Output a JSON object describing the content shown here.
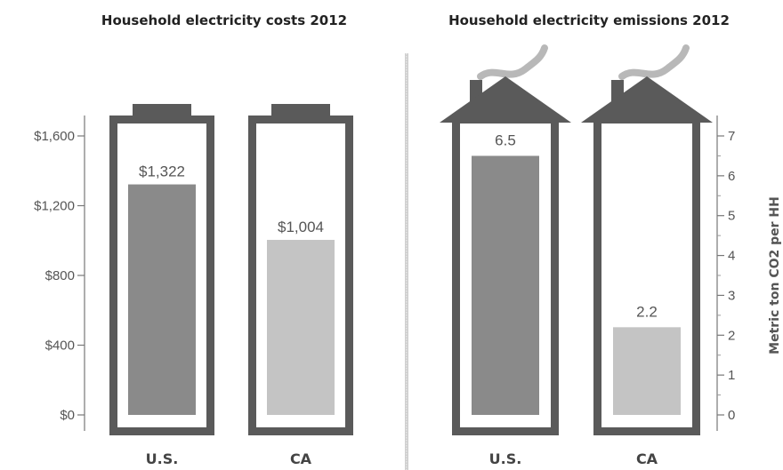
{
  "chart_data": [
    {
      "type": "bar",
      "title": "Household electricity costs 2012",
      "categories": [
        "U.S.",
        "CA"
      ],
      "values": [
        1322,
        1004
      ],
      "value_labels": [
        "$1,322",
        "$1,004"
      ],
      "ylim": [
        0,
        1700
      ],
      "yticks": [
        0,
        400,
        800,
        1200,
        1600
      ],
      "ytick_labels": [
        "$0",
        "$400",
        "$800",
        "$1,200",
        "$1,600"
      ],
      "ylabel": "",
      "grid": false,
      "colors": [
        "#8a8a8a",
        "#c4c4c4"
      ],
      "frame_color": "#5a5a5a"
    },
    {
      "type": "bar",
      "title": "Household electricity emissions 2012",
      "categories": [
        "U.S.",
        "CA"
      ],
      "values": [
        6.5,
        2.2
      ],
      "value_labels": [
        "6.5",
        "2.2"
      ],
      "ylim": [
        0,
        7.2
      ],
      "yticks": [
        0,
        1,
        2,
        3,
        4,
        5,
        6,
        7
      ],
      "ytick_labels": [
        "0",
        "1",
        "2",
        "3",
        "4",
        "5",
        "6",
        "7"
      ],
      "ylabel": "Metric ton CO2 per HH",
      "grid": false,
      "colors": [
        "#8a8a8a",
        "#c4c4c4"
      ],
      "frame_color": "#5a5a5a"
    }
  ]
}
